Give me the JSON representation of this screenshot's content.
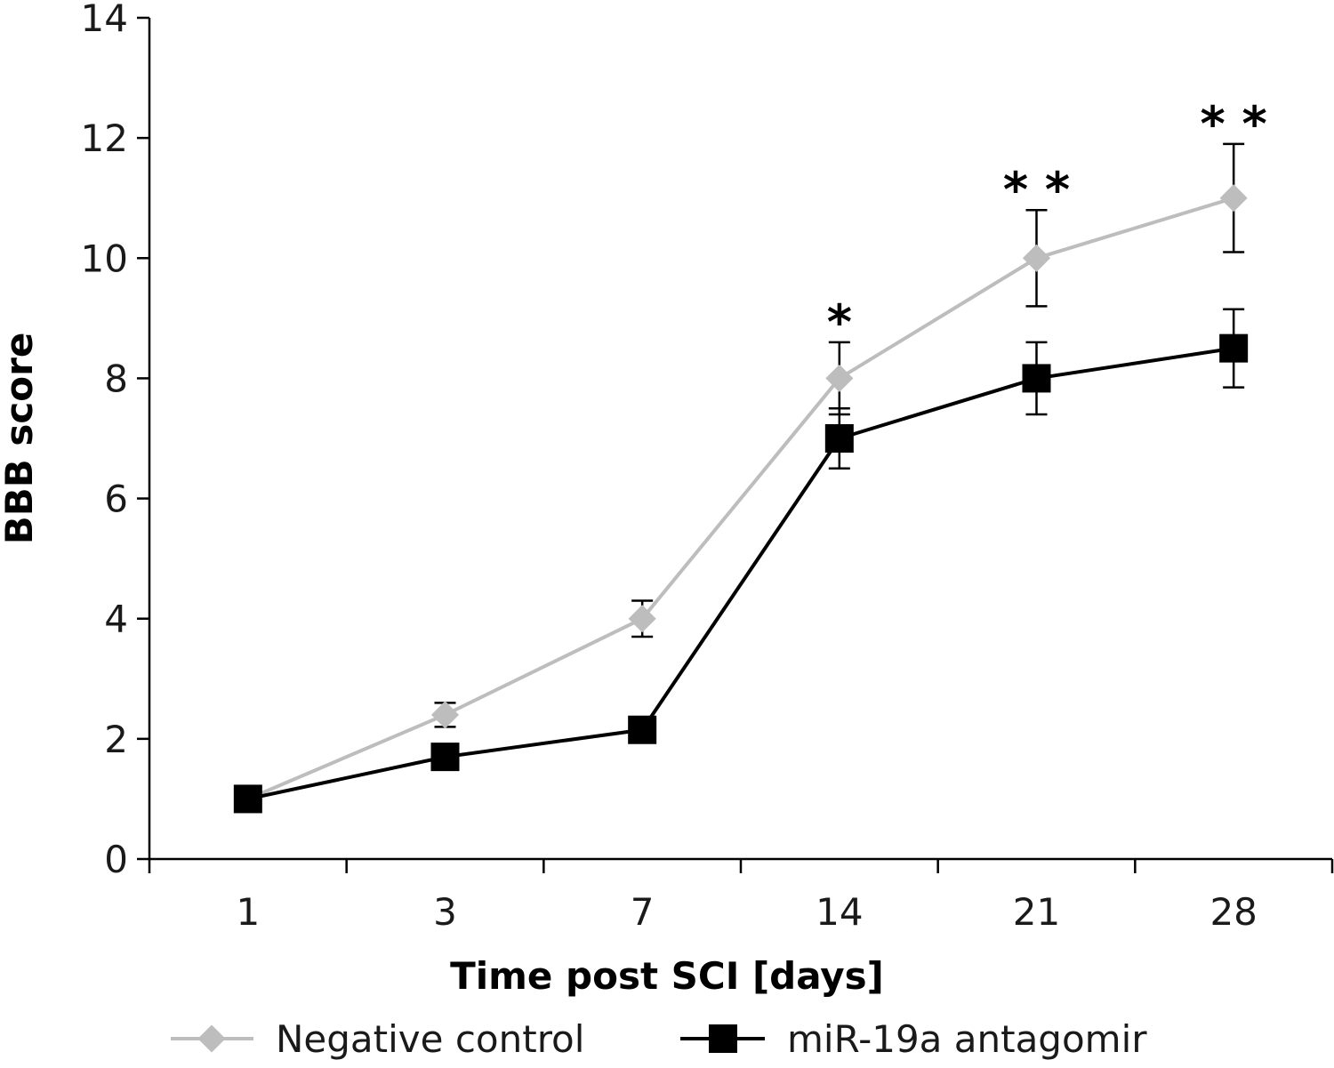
{
  "chart_data": {
    "type": "line",
    "categories": [
      "1",
      "3",
      "7",
      "14",
      "21",
      "28"
    ],
    "xlabel": "Time post SCI [days]",
    "ylabel": "BBB score",
    "ylim": [
      0,
      14
    ],
    "yticks": [
      "0",
      "2",
      "4",
      "6",
      "8",
      "10",
      "12",
      "14"
    ],
    "grid": false,
    "legend_position": "bottom",
    "series": [
      {
        "name": "Negative control",
        "color": "#bdbdbd",
        "marker": "diamond",
        "values": [
          1.0,
          2.4,
          4.0,
          8.0,
          10.0,
          11.0
        ],
        "error": [
          0,
          0.2,
          0.3,
          0.6,
          0.8,
          0.9
        ]
      },
      {
        "name": "miR-19a antagomir",
        "color": "#000000",
        "marker": "square",
        "values": [
          1.0,
          1.7,
          2.15,
          7.0,
          8.0,
          8.5
        ],
        "error": [
          0,
          0,
          0,
          0.5,
          0.6,
          0.65
        ]
      }
    ],
    "significance": [
      "",
      "",
      "",
      "*",
      "* *",
      "* *"
    ]
  }
}
